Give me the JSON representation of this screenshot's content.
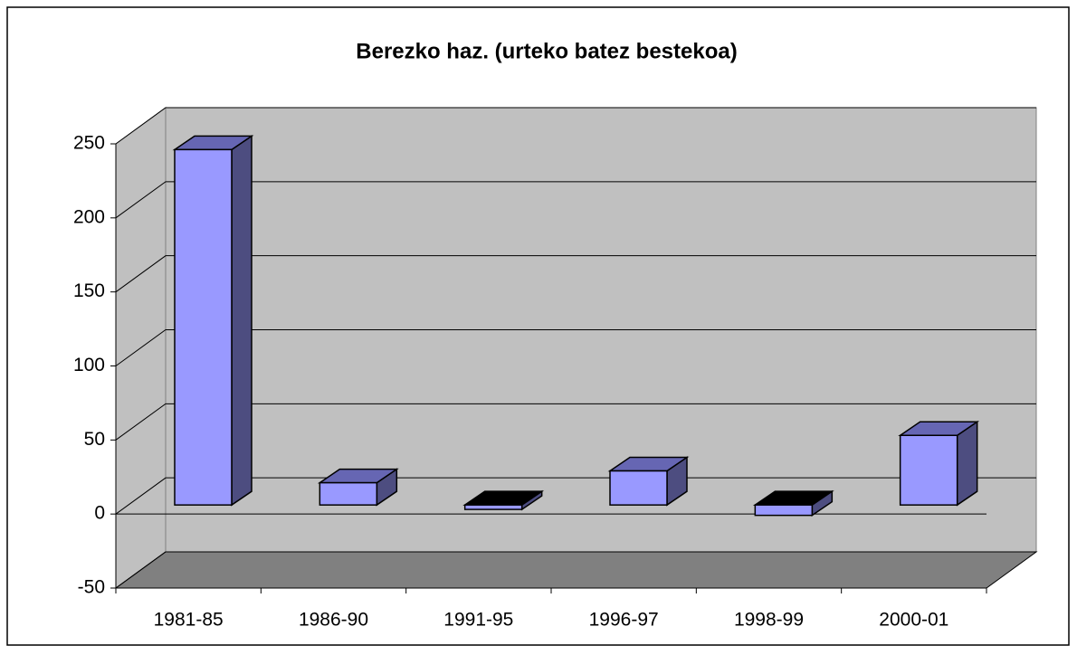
{
  "chart_data": {
    "type": "bar3d",
    "title": "Berezko haz. (urteko batez bestekoa)",
    "categories": [
      "1981-85",
      "1986-90",
      "1991-95",
      "1996-97",
      "1998-99",
      "2000-01"
    ],
    "values": [
      240,
      15,
      -3,
      23,
      -7,
      47
    ],
    "color": "#9999ff",
    "ylim": [
      -50,
      250
    ],
    "yticks": [
      -50,
      0,
      50,
      100,
      150,
      200,
      250
    ],
    "grid": true
  }
}
